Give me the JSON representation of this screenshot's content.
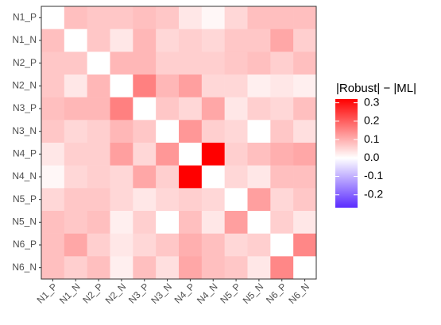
{
  "chart_data": {
    "type": "heatmap",
    "x_categories": [
      "N1_P",
      "N1_N",
      "N2_P",
      "N2_N",
      "N3_P",
      "N3_N",
      "N4_P",
      "N4_N",
      "N5_P",
      "N5_N",
      "N6_P",
      "N6_N"
    ],
    "y_categories": [
      "N1_P",
      "N1_N",
      "N2_P",
      "N2_N",
      "N3_P",
      "N3_N",
      "N4_P",
      "N4_N",
      "N5_P",
      "N5_N",
      "N6_P",
      "N6_N"
    ],
    "values": [
      [
        0,
        0.08,
        0.07,
        0.07,
        0.08,
        0.07,
        0.03,
        0.01,
        0.05,
        0.08,
        0.08,
        0.08
      ],
      [
        0.08,
        0,
        0.07,
        0.03,
        0.09,
        0.05,
        0.06,
        0.05,
        0.07,
        0.07,
        0.11,
        0.06
      ],
      [
        0.07,
        0.07,
        0,
        0.09,
        0.09,
        0.06,
        0.06,
        0.06,
        0.07,
        0.08,
        0.06,
        0.08
      ],
      [
        0.07,
        0.03,
        0.09,
        0,
        0.16,
        0.09,
        0.12,
        0.05,
        0.05,
        0.02,
        0.03,
        0.02
      ],
      [
        0.08,
        0.09,
        0.09,
        0.16,
        0,
        0.07,
        0.05,
        0.11,
        0.03,
        0.06,
        0.05,
        0.08
      ],
      [
        0.07,
        0.05,
        0.06,
        0.09,
        0.07,
        0,
        0.13,
        0.06,
        0.05,
        0,
        0.07,
        0.04
      ],
      [
        0.03,
        0.06,
        0.06,
        0.12,
        0.05,
        0.13,
        0,
        0.32,
        0.06,
        0.08,
        0.1,
        0.11
      ],
      [
        0.01,
        0.05,
        0.06,
        0.05,
        0.11,
        0.06,
        0.32,
        0,
        0.05,
        0.03,
        0.08,
        0.08
      ],
      [
        0.05,
        0.07,
        0.07,
        0.05,
        0.03,
        0.05,
        0.06,
        0.05,
        0,
        0.12,
        0.05,
        0.07
      ],
      [
        0.08,
        0.07,
        0.08,
        0.02,
        0.06,
        0,
        0.08,
        0.03,
        0.12,
        0,
        0.06,
        0.03
      ],
      [
        0.08,
        0.11,
        0.06,
        0.03,
        0.05,
        0.07,
        0.1,
        0.08,
        0.05,
        0.06,
        0,
        0.15
      ],
      [
        0.08,
        0.06,
        0.08,
        0.02,
        0.08,
        0.04,
        0.11,
        0.08,
        0.07,
        0.03,
        0.15,
        0
      ]
    ],
    "colorbar": {
      "title": "|Robust| − |ML|",
      "lim": [
        -0.27,
        0.32
      ],
      "ticks": [
        0.3,
        0.2,
        0.1,
        {
          "value": 0,
          "label": "0.0"
        },
        -0.1,
        -0.2
      ]
    },
    "low_color": "#5a2bff",
    "mid_color": "#ffffff",
    "high_color": "#ff0000"
  }
}
